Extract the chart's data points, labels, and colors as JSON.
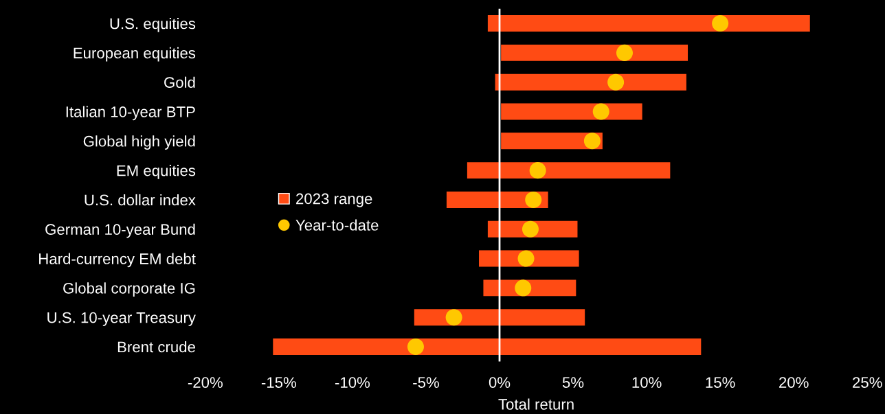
{
  "chart_data": {
    "type": "bar",
    "orientation": "horizontal",
    "xlabel": "Total return",
    "categories": [
      "U.S. equities",
      "European equities",
      "Gold",
      "Italian 10-year BTP",
      "Global high yield",
      "EM equities",
      "U.S. dollar index",
      "German 10-year Bund",
      "Hard-currency EM debt",
      "Global corporate IG",
      "U.S. 10-year Treasury",
      "Brent crude"
    ],
    "series": [
      {
        "name": "2023 range",
        "color": "#ff4b14",
        "base": [
          -0.8,
          0.1,
          -0.3,
          0.1,
          0.1,
          -2.2,
          -3.6,
          -0.8,
          -1.4,
          -1.1,
          -5.8,
          -15.4
        ],
        "values": [
          21.9,
          12.7,
          13.0,
          9.6,
          6.9,
          13.8,
          6.9,
          6.1,
          6.8,
          6.3,
          11.6,
          29.1
        ]
      },
      {
        "name": "Year-to-date",
        "type": "scatter",
        "marker": "circle",
        "color": "#ffc800",
        "values": [
          15.0,
          8.5,
          7.9,
          6.9,
          6.3,
          2.6,
          2.3,
          2.1,
          1.8,
          1.6,
          -3.1,
          -5.7
        ]
      }
    ],
    "xlim": [
      -20,
      25
    ],
    "xticks": [
      {
        "value": -20,
        "label": "-20%"
      },
      {
        "value": -15,
        "label": "-15%"
      },
      {
        "value": -10,
        "label": "-10%"
      },
      {
        "value": -5,
        "label": "-5%"
      },
      {
        "value": 0,
        "label": "0%"
      },
      {
        "value": 5,
        "label": "5%"
      },
      {
        "value": 10,
        "label": "10%"
      },
      {
        "value": 15,
        "label": "15%"
      },
      {
        "value": 20,
        "label": "20%"
      },
      {
        "value": 25,
        "label": "25%"
      }
    ],
    "ref_lines": [
      {
        "axis": "x",
        "value": 0,
        "color": "#ffffff"
      }
    ],
    "legend": "left",
    "grid": false
  }
}
